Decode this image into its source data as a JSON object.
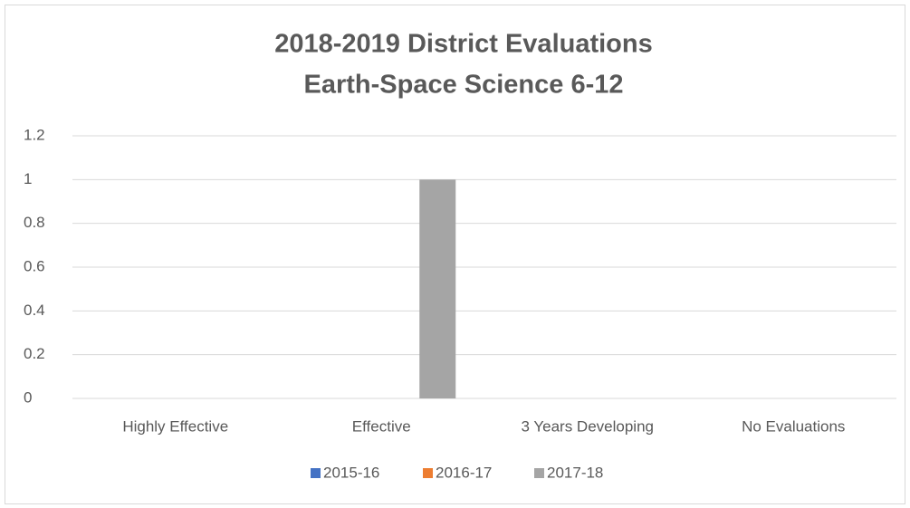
{
  "chart_data": {
    "type": "bar",
    "title": "2018-2019 District Evaluations",
    "subtitle": "Earth-Space Science 6-12",
    "categories": [
      "Highly Effective",
      "Effective",
      "3 Years Developing",
      "No Evaluations"
    ],
    "series": [
      {
        "name": "2015-16",
        "color": "#4472c4",
        "values": [
          0,
          0,
          0,
          0
        ]
      },
      {
        "name": "2016-17",
        "color": "#ed7d31",
        "values": [
          0,
          0,
          0,
          0
        ]
      },
      {
        "name": "2017-18",
        "color": "#a5a5a5",
        "values": [
          0,
          1,
          0,
          0
        ]
      }
    ],
    "ylim": [
      0,
      1.2
    ],
    "yticks": [
      0,
      0.2,
      0.4,
      0.6,
      0.8,
      1,
      1.2
    ],
    "grid": true,
    "legend": "bottom"
  }
}
